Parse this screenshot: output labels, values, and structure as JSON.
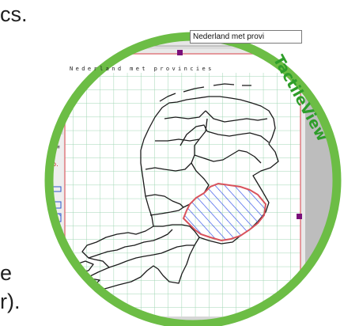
{
  "background_text": {
    "top": "cs.",
    "bottom_line1": "e",
    "bottom_line2": "r)."
  },
  "toolbar": {
    "map_select_value": "Nederland met provi",
    "tool_icons": [
      "folder-icon",
      "save-icon",
      "print-icon",
      "find-icon",
      "zoom-icon",
      "text-tool-icon",
      "pen-icon",
      "fill-icon"
    ]
  },
  "document": {
    "title": "Nederland met provincies"
  },
  "side_tools": [
    "select-icon",
    "page-icon",
    "magnifier-icon",
    "colors-icon",
    "line-style-icon",
    "pen-icon",
    "eraser-icon",
    "dotted-line-icon",
    "rectangle-icon",
    "grid-icon",
    "hatch-icon"
  ],
  "brand": {
    "name": "TactileView"
  },
  "colors": {
    "ring": "#6cbd45",
    "brand": "#2e9e2a",
    "grid": "#9fd6b3",
    "page_border": "#e07b80",
    "handle": "#7a0f7a",
    "highlight_outline": "#d9535c",
    "hatch": "#3a57e8"
  }
}
